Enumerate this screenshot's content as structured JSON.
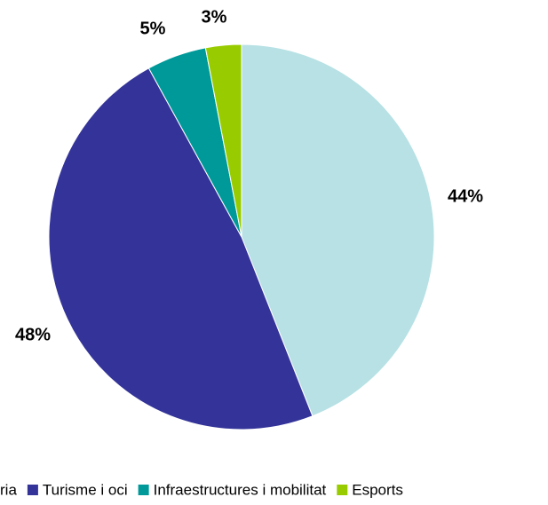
{
  "chart_data": {
    "type": "pie",
    "categories": [
      "ria",
      "Turisme i oci",
      "Infraestructures i mobilitat",
      "Esports"
    ],
    "values": [
      44,
      48,
      5,
      3
    ],
    "value_labels": [
      "44%",
      "48%",
      "5%",
      "3%"
    ],
    "colors": [
      "#b7e1e4",
      "#333399",
      "#009999",
      "#99cc00"
    ],
    "legend": "bottom"
  }
}
